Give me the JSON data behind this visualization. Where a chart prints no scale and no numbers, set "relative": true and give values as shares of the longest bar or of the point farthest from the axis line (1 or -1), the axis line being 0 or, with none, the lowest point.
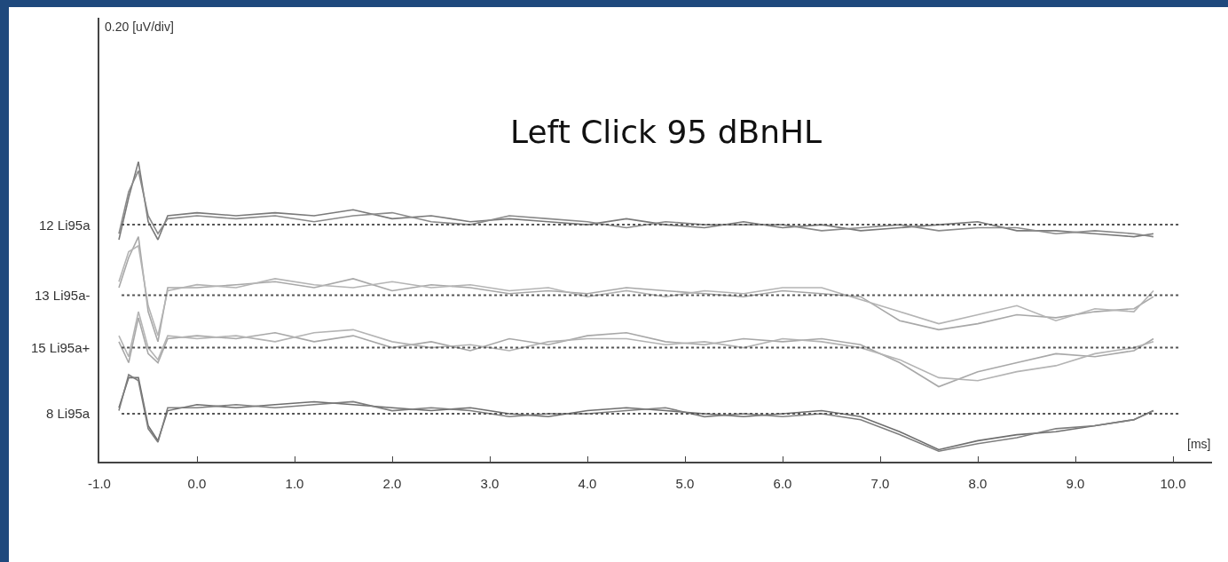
{
  "chart_data": {
    "type": "line",
    "relative": true,
    "title": "Left Click 95 dBnHL",
    "xlabel": "[ms]",
    "annotations": [
      "0.20 [uV/div]"
    ],
    "x": [
      -0.8,
      -0.7,
      -0.6,
      -0.5,
      -0.4,
      -0.3,
      0,
      0.4,
      0.8,
      1.2,
      1.6,
      2.0,
      2.4,
      2.8,
      3.2,
      3.6,
      4.0,
      4.4,
      4.8,
      5.2,
      5.6,
      6.0,
      6.4,
      6.8,
      7.2,
      7.6,
      8.0,
      8.4,
      8.8,
      9.2,
      9.6,
      9.8
    ],
    "series": [
      {
        "color": "#7a7a7a",
        "values": [
          0.74,
          0.88,
          1.0,
          0.8,
          0.74,
          0.82,
          0.83,
          0.82,
          0.83,
          0.82,
          0.84,
          0.81,
          0.82,
          0.8,
          0.81,
          0.8,
          0.79,
          0.81,
          0.79,
          0.78,
          0.8,
          0.78,
          0.79,
          0.77,
          0.78,
          0.79,
          0.8,
          0.77,
          0.77,
          0.76,
          0.75,
          0.76
        ]
      },
      {
        "color": "#8a8a8a",
        "values": [
          0.76,
          0.9,
          0.97,
          0.82,
          0.76,
          0.81,
          0.82,
          0.81,
          0.82,
          0.8,
          0.82,
          0.83,
          0.8,
          0.79,
          0.82,
          0.81,
          0.8,
          0.78,
          0.8,
          0.79,
          0.79,
          0.79,
          0.77,
          0.78,
          0.79,
          0.77,
          0.78,
          0.78,
          0.76,
          0.77,
          0.76,
          0.75
        ]
      },
      {
        "color": "#a8a8a8",
        "values": [
          0.58,
          0.68,
          0.75,
          0.5,
          0.4,
          0.58,
          0.58,
          0.59,
          0.6,
          0.58,
          0.61,
          0.57,
          0.59,
          0.58,
          0.56,
          0.57,
          0.56,
          0.58,
          0.57,
          0.56,
          0.55,
          0.57,
          0.56,
          0.55,
          0.47,
          0.44,
          0.46,
          0.49,
          0.48,
          0.5,
          0.51,
          0.55
        ]
      },
      {
        "color": "#b4b4b4",
        "values": [
          0.6,
          0.7,
          0.72,
          0.52,
          0.42,
          0.57,
          0.59,
          0.58,
          0.61,
          0.59,
          0.58,
          0.6,
          0.58,
          0.59,
          0.57,
          0.58,
          0.55,
          0.57,
          0.55,
          0.57,
          0.56,
          0.58,
          0.58,
          0.54,
          0.5,
          0.46,
          0.49,
          0.52,
          0.47,
          0.51,
          0.5,
          0.57
        ]
      },
      {
        "color": "#a8a8a8",
        "values": [
          0.4,
          0.33,
          0.48,
          0.36,
          0.33,
          0.41,
          0.42,
          0.41,
          0.43,
          0.4,
          0.42,
          0.38,
          0.4,
          0.37,
          0.41,
          0.39,
          0.42,
          0.43,
          0.4,
          0.39,
          0.41,
          0.4,
          0.41,
          0.39,
          0.33,
          0.25,
          0.3,
          0.33,
          0.36,
          0.35,
          0.37,
          0.41
        ]
      },
      {
        "color": "#b4b4b4",
        "values": [
          0.42,
          0.35,
          0.5,
          0.38,
          0.34,
          0.42,
          0.41,
          0.42,
          0.4,
          0.43,
          0.44,
          0.4,
          0.38,
          0.39,
          0.37,
          0.4,
          0.41,
          0.41,
          0.39,
          0.4,
          0.38,
          0.41,
          0.4,
          0.38,
          0.34,
          0.28,
          0.27,
          0.3,
          0.32,
          0.36,
          0.38,
          0.4
        ]
      },
      {
        "color": "#6e6e6e",
        "values": [
          0.18,
          0.28,
          0.28,
          0.12,
          0.07,
          0.17,
          0.19,
          0.18,
          0.19,
          0.2,
          0.19,
          0.18,
          0.17,
          0.18,
          0.16,
          0.15,
          0.17,
          0.18,
          0.17,
          0.16,
          0.15,
          0.16,
          0.17,
          0.15,
          0.1,
          0.04,
          0.07,
          0.09,
          0.1,
          0.12,
          0.14,
          0.17
        ]
      },
      {
        "color": "#7e7e7e",
        "values": [
          0.17,
          0.29,
          0.27,
          0.11,
          0.065,
          0.18,
          0.18,
          0.19,
          0.18,
          0.19,
          0.2,
          0.17,
          0.18,
          0.17,
          0.15,
          0.16,
          0.16,
          0.17,
          0.18,
          0.15,
          0.16,
          0.15,
          0.16,
          0.14,
          0.09,
          0.035,
          0.06,
          0.08,
          0.11,
          0.12,
          0.14,
          0.17
        ]
      }
    ],
    "ref_lines": [
      {
        "axis": "y",
        "value": 0.79,
        "label": "12 Li95a",
        "color": "#555555",
        "line_style": "dotted"
      },
      {
        "axis": "y",
        "value": 0.555,
        "label": "13 Li95a-",
        "color": "#555555",
        "line_style": "dotted"
      },
      {
        "axis": "y",
        "value": 0.38,
        "label": "15 Li95a+",
        "color": "#555555",
        "line_style": "dotted"
      },
      {
        "axis": "y",
        "value": 0.16,
        "label": "8 Li95a",
        "color": "#555555",
        "line_style": "dotted"
      }
    ],
    "xlim": [
      -1,
      10.4
    ],
    "xticks": [
      {
        "value": -1,
        "label": "-1.0"
      },
      {
        "value": 0,
        "label": "0.0"
      },
      {
        "value": 1,
        "label": "1.0"
      },
      {
        "value": 2,
        "label": "2.0"
      },
      {
        "value": 3,
        "label": "3.0"
      },
      {
        "value": 4,
        "label": "4.0"
      },
      {
        "value": 5,
        "label": "5.0"
      },
      {
        "value": 6,
        "label": "6.0"
      },
      {
        "value": 7,
        "label": "7.0"
      },
      {
        "value": 8,
        "label": "8.0"
      },
      {
        "value": 9,
        "label": "9.0"
      },
      {
        "value": 10,
        "label": "10.0"
      }
    ],
    "grid": false
  }
}
